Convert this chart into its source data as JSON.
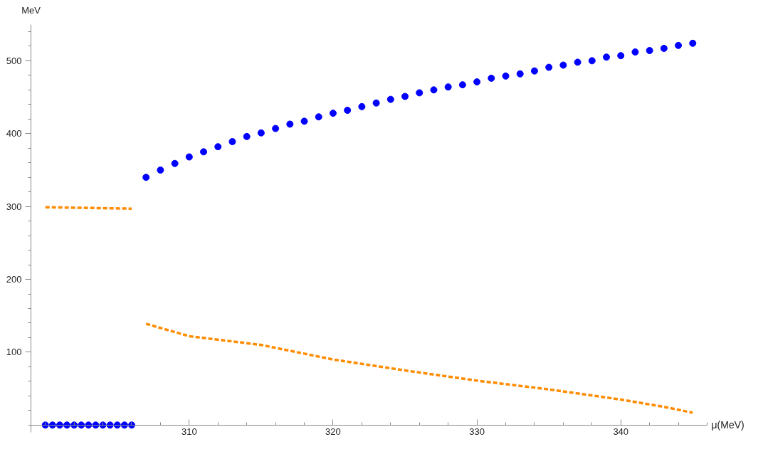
{
  "chart_data": {
    "type": "scatter",
    "xlabel": "μ(MeV)",
    "ylabel": "MeV",
    "xlim": [
      299,
      346
    ],
    "ylim": [
      -10,
      550
    ],
    "xticks": [
      310,
      320,
      330,
      340
    ],
    "yticks": [
      100,
      200,
      300,
      400,
      500
    ],
    "grid": false,
    "series": [
      {
        "marker": "circle",
        "color": "#0000ff",
        "x": [
          300,
          300.5,
          301,
          301.5,
          302,
          302.5,
          303,
          303.5,
          304,
          304.5,
          305,
          305.5,
          306
        ],
        "values": [
          0,
          0,
          0,
          0,
          0,
          0,
          0,
          0,
          0,
          0,
          0,
          0,
          0
        ]
      },
      {
        "marker": "circle",
        "color": "#0000ff",
        "x": [
          307,
          308,
          309,
          310,
          311,
          312,
          313,
          314,
          315,
          316,
          317,
          318,
          319,
          320,
          321,
          322,
          323,
          324,
          325,
          326,
          327,
          328,
          329,
          330,
          331,
          332,
          333,
          334,
          335,
          336,
          337,
          338,
          339,
          340,
          341,
          342,
          343,
          344,
          345
        ],
        "values": [
          340,
          350,
          359,
          368,
          375,
          382,
          389,
          396,
          401,
          407,
          413,
          417,
          423,
          428,
          432,
          437,
          442,
          447,
          451,
          456,
          460,
          464,
          467,
          471,
          476,
          479,
          482,
          486,
          491,
          494,
          498,
          500,
          505,
          507,
          512,
          514,
          517,
          521,
          524
        ]
      },
      {
        "type": "line",
        "line_style": "dashed",
        "color": "#ff8c00",
        "x": [
          300,
          303,
          306
        ],
        "values": [
          299,
          298,
          297
        ]
      },
      {
        "type": "line",
        "line_style": "dashed",
        "color": "#ff8c00",
        "x": [
          307,
          310,
          315,
          320,
          325,
          330,
          335,
          340,
          343,
          345
        ],
        "values": [
          139,
          122,
          110,
          90,
          75,
          61,
          49,
          35,
          25,
          17
        ]
      }
    ]
  }
}
